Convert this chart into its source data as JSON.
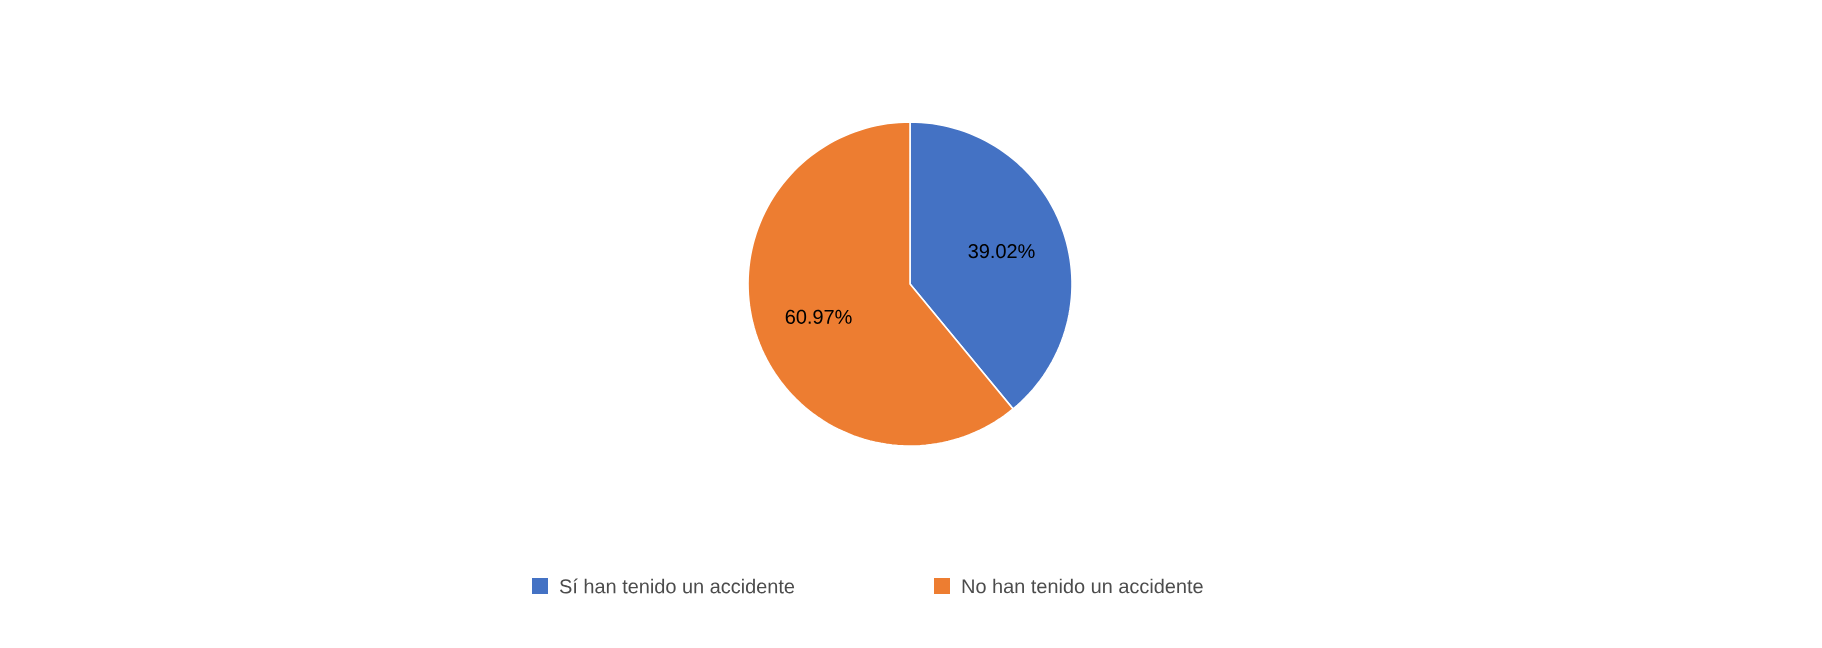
{
  "chart_data": {
    "type": "pie",
    "categories": [
      "Sí han tenido un accidente",
      "No han tenido un accidente"
    ],
    "values": [
      39.02,
      60.97
    ],
    "value_labels": [
      "39.02%",
      "60.97%"
    ],
    "colors": [
      "#4472c4",
      "#ed7d31"
    ],
    "legend": "bottom"
  }
}
